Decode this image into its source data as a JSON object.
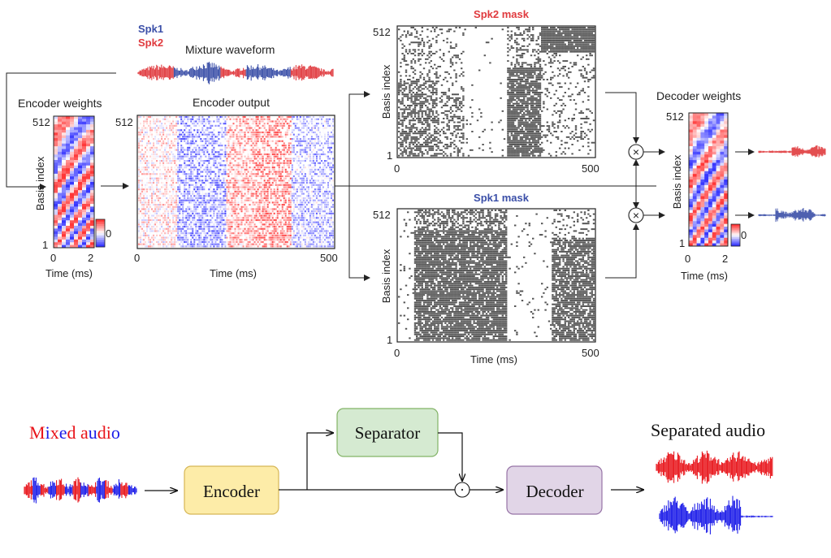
{
  "top": {
    "legend": {
      "spk1": "Spk1",
      "spk2": "Spk2",
      "spk1_color": "#3b4fa8",
      "spk2_color": "#e03a3e"
    },
    "mixture_title": "Mixture waveform",
    "encoder_weights": {
      "title": "Encoder weights",
      "y_label": "Basis index",
      "y_max": "512",
      "y_min": "1",
      "x_label": "Time (ms)",
      "x_min": "0",
      "x_max": "2",
      "colorbar_zero": "0"
    },
    "encoder_output": {
      "title": "Encoder output",
      "x_label": "Time (ms)",
      "x_min": "0",
      "x_max": "500",
      "y_max": "512"
    },
    "spk2_mask": {
      "title": "Spk2 mask",
      "title_color": "#e03a3e",
      "y_label": "Basis index",
      "y_max": "512",
      "y_min": "1",
      "x_min": "0",
      "x_max": "500"
    },
    "spk1_mask": {
      "title": "Spk1 mask",
      "title_color": "#3b4fa8",
      "y_label": "Basis index",
      "y_max": "512",
      "y_min": "1",
      "x_label": "Time (ms)",
      "x_min": "0",
      "x_max": "500"
    },
    "decoder_weights": {
      "title": "Decoder weights",
      "y_label": "Basis index",
      "y_max": "512",
      "y_min": "1",
      "x_label": "Time (ms)",
      "x_min": "0",
      "x_max": "2",
      "colorbar_zero": "0"
    },
    "multiply_symbol": "×"
  },
  "bottom": {
    "mixed_audio_letters": [
      {
        "ch": "M",
        "color": "#e8141a"
      },
      {
        "ch": "i",
        "color": "#1a1ae8"
      },
      {
        "ch": "x",
        "color": "#e8141a"
      },
      {
        "ch": "e",
        "color": "#1a1ae8"
      },
      {
        "ch": "d",
        "color": "#e8141a"
      },
      {
        "ch": " ",
        "color": "#000000"
      },
      {
        "ch": "a",
        "color": "#e8141a"
      },
      {
        "ch": "u",
        "color": "#1a1ae8"
      },
      {
        "ch": "d",
        "color": "#e8141a"
      },
      {
        "ch": "i",
        "color": "#e8141a"
      },
      {
        "ch": "o",
        "color": "#1a1ae8"
      }
    ],
    "encoder_label": "Encoder",
    "separator_label": "Separator",
    "decoder_label": "Decoder",
    "separated_audio_label": "Separated audio",
    "dot_symbol": "·",
    "colors": {
      "encoder_fill": "#fdeca8",
      "encoder_stroke": "#d6b656",
      "separator_fill": "#d5ead1",
      "separator_stroke": "#82b366",
      "decoder_fill": "#e1d5e7",
      "decoder_stroke": "#9673a6",
      "red_wave": "#e8141a",
      "blue_wave": "#1a1ae8"
    }
  }
}
